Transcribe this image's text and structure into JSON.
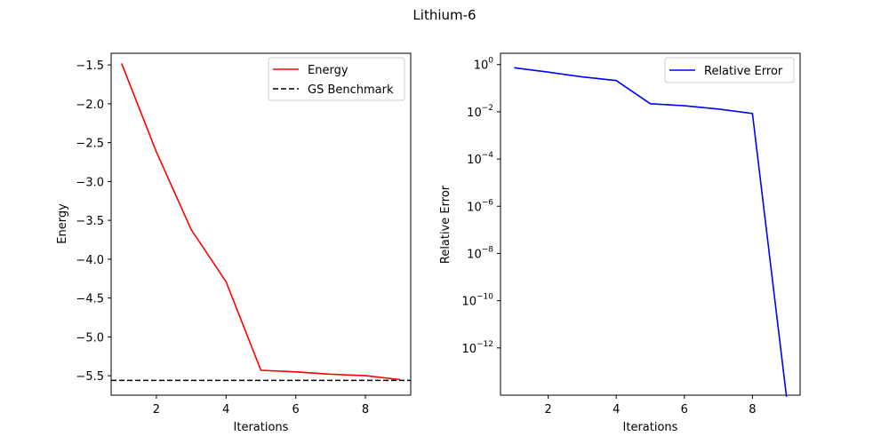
{
  "figure": {
    "title": "Lithium-6"
  },
  "chart_data": [
    {
      "type": "line",
      "xlabel": "Iterations",
      "ylabel": "Energy",
      "xlim": [
        0.7,
        9.3
      ],
      "ylim": [
        -5.75,
        -1.35
      ],
      "xticks": [
        2,
        4,
        6,
        8
      ],
      "yticks": [
        -5.5,
        -5.0,
        -4.5,
        -4.0,
        -3.5,
        -3.0,
        -2.5,
        -2.0,
        -1.5
      ],
      "ytick_labels": [
        "−5.5",
        "−5.0",
        "−4.5",
        "−4.0",
        "−3.5",
        "−3.0",
        "−2.5",
        "−2.0",
        "−1.5"
      ],
      "x": [
        1,
        2,
        3,
        4,
        5,
        6,
        7,
        8,
        9
      ],
      "series": [
        {
          "name": "Energy",
          "values": [
            -1.48,
            -2.62,
            -3.62,
            -4.29,
            -5.43,
            -5.45,
            -5.48,
            -5.5,
            -5.55
          ],
          "color": "#ff0000",
          "style": "solid"
        }
      ],
      "hlines": [
        {
          "name": "GS Benchmark",
          "y": -5.56,
          "color": "#000000",
          "style": "dashed"
        }
      ],
      "legend": {
        "placement": "top-right",
        "entries": [
          "Energy",
          "GS Benchmark"
        ]
      },
      "grid": false
    },
    {
      "type": "line",
      "xlabel": "Iterations",
      "ylabel": "Relative Error",
      "yscale": "log",
      "xlim": [
        0.6,
        9.4
      ],
      "ylim": [
        1e-14,
        3
      ],
      "xticks": [
        2,
        4,
        6,
        8
      ],
      "yticks": [
        1,
        0.01,
        0.0001,
        1e-06,
        1e-08,
        1e-10,
        1e-12
      ],
      "ytick_labels": [
        {
          "base": "10",
          "exp": "0"
        },
        {
          "base": "10",
          "exp": "−2"
        },
        {
          "base": "10",
          "exp": "−4"
        },
        {
          "base": "10",
          "exp": "−6"
        },
        {
          "base": "10",
          "exp": "−8"
        },
        {
          "base": "10",
          "exp": "−10"
        },
        {
          "base": "10",
          "exp": "−12"
        }
      ],
      "x": [
        1,
        2,
        3,
        4,
        5,
        6,
        7,
        8,
        9
      ],
      "series": [
        {
          "name": "Relative Error",
          "values": [
            0.73,
            0.48,
            0.3,
            0.21,
            0.022,
            0.018,
            0.013,
            0.0085,
            8.5e-15
          ],
          "color": "#0000ff",
          "style": "solid"
        }
      ],
      "legend": {
        "placement": "top-right",
        "entries": [
          "Relative Error"
        ]
      },
      "grid": false
    }
  ]
}
